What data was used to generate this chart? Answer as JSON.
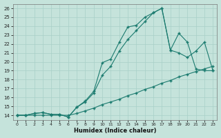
{
  "xlabel": "Humidex (Indice chaleur)",
  "xlim": [
    -0.5,
    23.5
  ],
  "ylim": [
    13.5,
    26.5
  ],
  "xticks": [
    0,
    1,
    2,
    3,
    4,
    5,
    6,
    7,
    8,
    9,
    10,
    11,
    12,
    13,
    14,
    15,
    16,
    17,
    18,
    19,
    20,
    21,
    22,
    23
  ],
  "yticks": [
    14,
    15,
    16,
    17,
    18,
    19,
    20,
    21,
    22,
    23,
    24,
    25,
    26
  ],
  "line_color": "#1a7a6e",
  "bg_color": "#c5e3db",
  "grid_color": "#a8d0c8",
  "curve1_x": [
    0,
    1,
    2,
    3,
    4,
    5,
    6,
    7,
    8,
    9,
    10,
    11,
    12,
    13,
    14,
    15,
    16,
    17,
    18,
    19,
    20,
    21,
    22,
    23
  ],
  "curve1_y": [
    14.0,
    14.0,
    14.2,
    14.3,
    14.1,
    14.1,
    13.8,
    14.9,
    15.6,
    16.7,
    19.9,
    20.3,
    22.2,
    23.9,
    24.1,
    25.0,
    25.5,
    26.0,
    21.3,
    23.2,
    22.2,
    19.2,
    19.0,
    19.0
  ],
  "curve2_x": [
    0,
    1,
    2,
    3,
    4,
    5,
    6,
    7,
    8,
    9,
    10,
    11,
    12,
    13,
    14,
    15,
    16,
    17,
    18,
    19,
    20,
    21,
    22,
    23
  ],
  "curve2_y": [
    14.0,
    14.0,
    14.2,
    14.3,
    14.1,
    14.1,
    13.8,
    14.9,
    15.5,
    16.5,
    18.5,
    19.5,
    21.2,
    22.5,
    23.5,
    24.5,
    25.5,
    26.0,
    21.3,
    21.0,
    20.5,
    21.2,
    22.2,
    19.0
  ],
  "curve3_x": [
    0,
    1,
    2,
    3,
    4,
    5,
    6,
    7,
    8,
    9,
    10,
    11,
    12,
    13,
    14,
    15,
    16,
    17,
    18,
    19,
    20,
    21,
    22,
    23
  ],
  "curve3_y": [
    14.0,
    14.0,
    14.0,
    14.0,
    14.0,
    14.0,
    14.0,
    14.2,
    14.5,
    14.8,
    15.2,
    15.5,
    15.8,
    16.2,
    16.5,
    16.9,
    17.2,
    17.6,
    17.9,
    18.3,
    18.6,
    18.9,
    19.2,
    19.5
  ]
}
